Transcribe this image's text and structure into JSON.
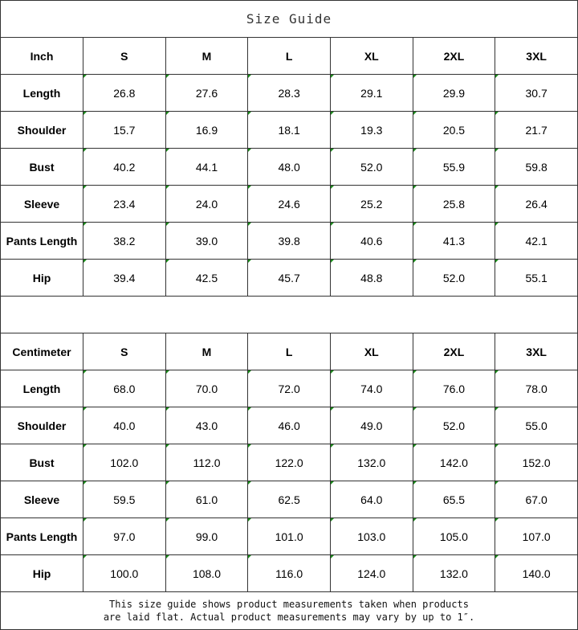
{
  "title": "Size Guide",
  "sizes": [
    "S",
    "M",
    "L",
    "XL",
    "2XL",
    "3XL"
  ],
  "inch": {
    "unit_label": "Inch",
    "rows": [
      {
        "label": "Length",
        "values": [
          "26.8",
          "27.6",
          "28.3",
          "29.1",
          "29.9",
          "30.7"
        ]
      },
      {
        "label": "Shoulder",
        "values": [
          "15.7",
          "16.9",
          "18.1",
          "19.3",
          "20.5",
          "21.7"
        ]
      },
      {
        "label": "Bust",
        "values": [
          "40.2",
          "44.1",
          "48.0",
          "52.0",
          "55.9",
          "59.8"
        ]
      },
      {
        "label": "Sleeve",
        "values": [
          "23.4",
          "24.0",
          "24.6",
          "25.2",
          "25.8",
          "26.4"
        ]
      },
      {
        "label": "Pants Length",
        "values": [
          "38.2",
          "39.0",
          "39.8",
          "40.6",
          "41.3",
          "42.1"
        ]
      },
      {
        "label": "Hip",
        "values": [
          "39.4",
          "42.5",
          "45.7",
          "48.8",
          "52.0",
          "55.1"
        ]
      }
    ]
  },
  "cm": {
    "unit_label": "Centimeter",
    "rows": [
      {
        "label": "Length",
        "values": [
          "68.0",
          "70.0",
          "72.0",
          "74.0",
          "76.0",
          "78.0"
        ]
      },
      {
        "label": "Shoulder",
        "values": [
          "40.0",
          "43.0",
          "46.0",
          "49.0",
          "52.0",
          "55.0"
        ]
      },
      {
        "label": "Bust",
        "values": [
          "102.0",
          "112.0",
          "122.0",
          "132.0",
          "142.0",
          "152.0"
        ]
      },
      {
        "label": "Sleeve",
        "values": [
          "59.5",
          "61.0",
          "62.5",
          "64.0",
          "65.5",
          "67.0"
        ]
      },
      {
        "label": "Pants Length",
        "values": [
          "97.0",
          "99.0",
          "101.0",
          "103.0",
          "105.0",
          "107.0"
        ]
      },
      {
        "label": "Hip",
        "values": [
          "100.0",
          "108.0",
          "116.0",
          "124.0",
          "132.0",
          "140.0"
        ]
      }
    ]
  },
  "note_line1": "This size guide shows product measurements taken when products",
  "note_line2": "are laid flat. Actual product measurements may vary by up to 1″.",
  "colors": {
    "border": "#333333",
    "corner_marker": "#1a8a1a"
  }
}
